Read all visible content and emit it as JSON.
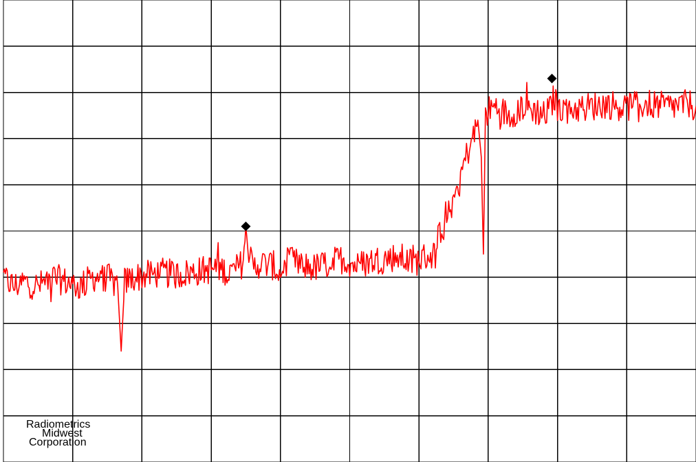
{
  "chart_data": {
    "type": "line",
    "title": "",
    "xlabel": "",
    "ylabel": "",
    "grid": true,
    "grid_divisions": {
      "x": 10,
      "y": 10
    },
    "xlim": [
      0,
      100
    ],
    "ylim": [
      0,
      100
    ],
    "series": [
      {
        "color": "#ff0000",
        "x": [
          0,
          1.5,
          3,
          5,
          7,
          9,
          11,
          13,
          15,
          16.5,
          17,
          17.5,
          19,
          21,
          23,
          25,
          27,
          29,
          31,
          33,
          34.5,
          35,
          36,
          37,
          39,
          40,
          41,
          43,
          45,
          47,
          49,
          51,
          53,
          55,
          57,
          59,
          61,
          62.5,
          63,
          64,
          65,
          66,
          67,
          68,
          68.5,
          69,
          69.3,
          69.6,
          70,
          71,
          72,
          73,
          75,
          77,
          78,
          79,
          79.5,
          80,
          81,
          83,
          85,
          87,
          89,
          91,
          93,
          95,
          97,
          99,
          100
        ],
        "y": [
          40,
          38,
          39,
          38,
          40,
          39,
          38,
          40,
          40,
          38,
          24,
          39,
          40,
          40.5,
          41,
          40.5,
          41,
          41.5,
          42,
          41,
          43,
          49,
          42,
          43,
          42.5,
          40.5,
          44,
          42.5,
          42,
          43,
          44,
          42.5,
          43.5,
          44,
          44.5,
          43,
          44.5,
          45,
          50,
          53,
          57,
          62,
          67,
          71,
          74,
          66,
          45,
          75,
          76,
          77,
          76,
          75,
          77,
          76,
          75,
          76.5,
          79,
          77,
          76.5,
          76.5,
          77,
          77.5,
          77,
          77,
          77.5,
          77,
          77,
          77.5,
          77
        ]
      }
    ],
    "markers": [
      {
        "x": 35,
        "y": 51,
        "shape": "diamond"
      },
      {
        "x": 79.2,
        "y": 83,
        "shape": "diamond"
      }
    ]
  },
  "watermark": {
    "line1": "Radiometrics",
    "line2": "Midwest",
    "line3": "Corporation"
  }
}
